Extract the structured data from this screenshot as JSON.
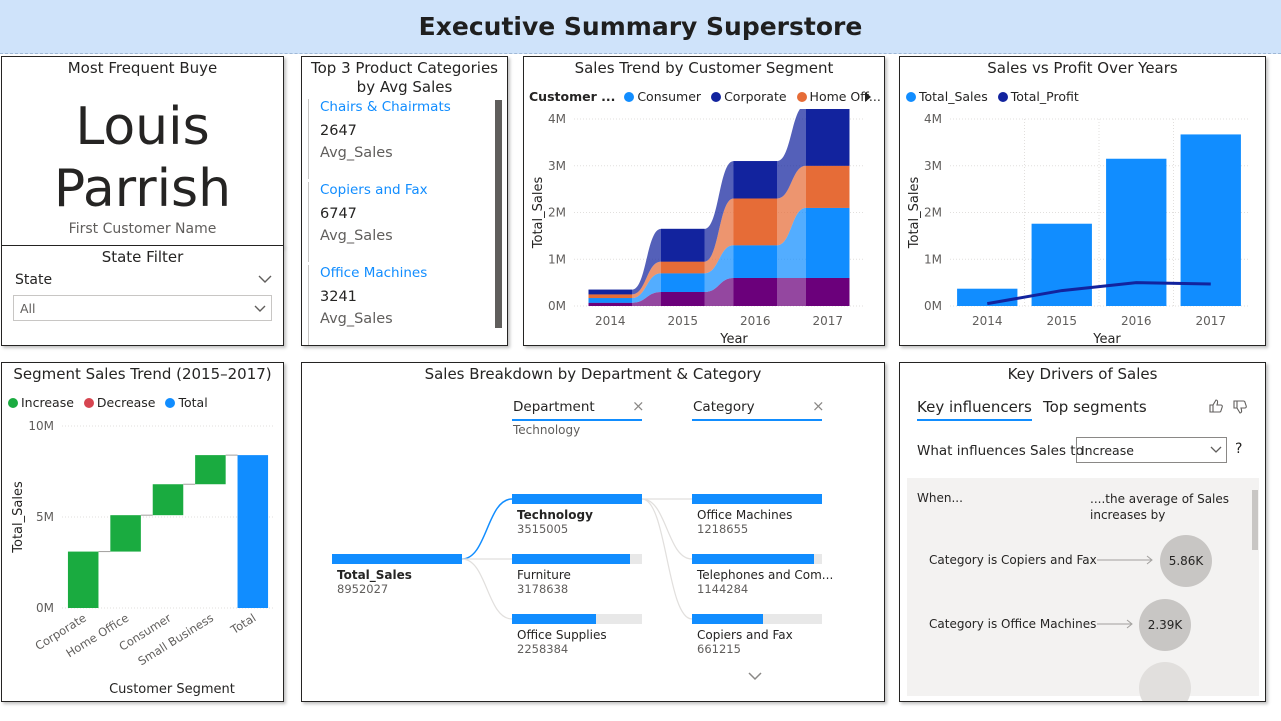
{
  "page_title": "Executive Summary Superstore",
  "buyer_card": {
    "title": "Most Frequent Buye",
    "first_name": "Louis",
    "last_name": "Parrish",
    "caption": "First Customer Name"
  },
  "state_filter": {
    "title": "State Filter",
    "field_label": "State",
    "selected": "All"
  },
  "top3": {
    "title_line1": "Top 3 Product Categories",
    "title_line2": "by Avg Sales",
    "items": [
      {
        "name": "Chairs & Chairmats",
        "value": "2647",
        "label": "Avg_Sales"
      },
      {
        "name": "Copiers and Fax",
        "value": "6747",
        "label": "Avg_Sales"
      },
      {
        "name": "Office Machines",
        "value": "3241",
        "label": "Avg_Sales"
      }
    ]
  },
  "colors": {
    "consumer": "#118dff",
    "corporate": "#12239e",
    "home_office": "#e66c37",
    "small_business": "#6b007b",
    "increase": "#1aab40",
    "decrease": "#d64550",
    "total": "#118dff",
    "profit_line": "#12239e"
  },
  "chart_data": [
    {
      "id": "segment_trend",
      "type": "area",
      "title": "Sales Trend by Customer Segment",
      "legend_title": "Customer ...",
      "legend": [
        "Consumer",
        "Corporate",
        "Home Off..."
      ],
      "xlabel": "Year",
      "ylabel": "Total_Sales",
      "x": [
        "2014",
        "2015",
        "2016",
        "2017"
      ],
      "yticks": [
        "0M",
        "1M",
        "2M",
        "3M",
        "4M"
      ],
      "ylim": [
        0,
        4000000
      ],
      "series": [
        {
          "name": "Consumer",
          "values": [
            100000,
            400000,
            700000,
            1500000
          ]
        },
        {
          "name": "Home Office",
          "values": [
            80000,
            250000,
            1000000,
            900000
          ]
        },
        {
          "name": "Corporate",
          "values": [
            100000,
            700000,
            800000,
            1300000
          ]
        }
      ],
      "other_values": [
        70000,
        300000,
        600000,
        600000
      ]
    },
    {
      "id": "sales_profit",
      "type": "bar",
      "title": "Sales vs Profit Over Years",
      "legend": [
        "Total_Sales",
        "Total_Profit"
      ],
      "xlabel": "Year",
      "ylabel": "Total_Sales",
      "categories": [
        "2014",
        "2015",
        "2016",
        "2017"
      ],
      "yticks": [
        "0M",
        "1M",
        "2M",
        "3M",
        "4M"
      ],
      "ylim": [
        0,
        4000000
      ],
      "series": [
        {
          "name": "Total_Sales",
          "values": [
            370000,
            1760000,
            3150000,
            3670000
          ]
        },
        {
          "name": "Total_Profit",
          "values": [
            50000,
            330000,
            500000,
            470000
          ]
        }
      ]
    },
    {
      "id": "waterfall",
      "type": "bar",
      "title": "Segment Sales Trend (2015–2017)",
      "legend": [
        "Increase",
        "Decrease",
        "Total"
      ],
      "xlabel": "Customer Segment",
      "ylabel": "Total_Sales",
      "categories": [
        "Corporate",
        "Home Office",
        "Consumer",
        "Small Business",
        "Total"
      ],
      "yticks": [
        "0M",
        "5M",
        "10M"
      ],
      "ylim": [
        0,
        10000000
      ],
      "values": [
        3100000,
        2000000,
        1700000,
        1600000,
        8400000
      ]
    }
  ],
  "decomposition": {
    "title": "Sales Breakdown by Department & Category",
    "col1_header": "Department",
    "col1_sub": "Technology",
    "col2_header": "Category",
    "root": {
      "label": "Total_Sales",
      "value": "8952027",
      "fraction": 1.0
    },
    "departments": [
      {
        "label": "Technology",
        "value": "3515005",
        "fraction": 1.0
      },
      {
        "label": "Furniture",
        "value": "3178638",
        "fraction": 0.904
      },
      {
        "label": "Office Supplies",
        "value": "2258384",
        "fraction": 0.643
      }
    ],
    "categories": [
      {
        "label": "Office Machines",
        "value": "1218655",
        "fraction": 1.0
      },
      {
        "label": "Telephones and Com...",
        "value": "1144284",
        "fraction": 0.939
      },
      {
        "label": "Copiers and Fax",
        "value": "661215",
        "fraction": 0.543
      }
    ]
  },
  "key_drivers": {
    "title": "Key Drivers of Sales",
    "tab_active": "Key influencers",
    "tab_other": "Top segments",
    "question": "What influences Sales to",
    "dropdown_value": "Increase",
    "help": "?",
    "header_left": "When...",
    "header_right_1": "....the average of Sales",
    "header_right_2": "increases by",
    "influencers": [
      {
        "label": "Category is Copiers and Fax",
        "value": "5.86K"
      },
      {
        "label": "Category is Office Machines",
        "value": "2.39K"
      }
    ]
  }
}
